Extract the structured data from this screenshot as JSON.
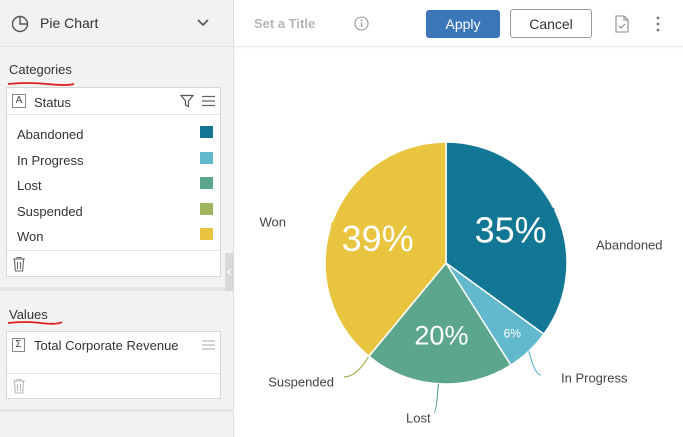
{
  "chart_picker": {
    "selected": "Pie Chart",
    "icon": "pie-chart-icon"
  },
  "categories": {
    "section_title": "Categories",
    "field_type": "A",
    "field": "Status",
    "items": [
      {
        "label": "Abandoned",
        "color": "#127794"
      },
      {
        "label": "In Progress",
        "color": "#62b8cc"
      },
      {
        "label": "Lost",
        "color": "#5ba68c"
      },
      {
        "label": "Suspended",
        "color": "#9fb45e"
      },
      {
        "label": "Won",
        "color": "#e8c43f"
      }
    ]
  },
  "values": {
    "section_title": "Values",
    "field_type": "Σ",
    "field": "Total Corporate Revenue"
  },
  "toolbar": {
    "title_placeholder": "Set a Title",
    "apply_label": "Apply",
    "cancel_label": "Cancel"
  },
  "chart_data": {
    "type": "pie",
    "title": "",
    "slices": [
      {
        "label": "Abandoned",
        "value": 35,
        "display": "35%",
        "color": "#127794"
      },
      {
        "label": "In Progress",
        "value": 6,
        "display": "6%",
        "color": "#62b8cc"
      },
      {
        "label": "Lost",
        "value": 20,
        "display": "20%",
        "color": "#5ba68c"
      },
      {
        "label": "Suspended",
        "value": 0,
        "display": "",
        "color": "#9fb45e"
      },
      {
        "label": "Won",
        "value": 39,
        "display": "39%",
        "color": "#e8c43f"
      }
    ]
  }
}
